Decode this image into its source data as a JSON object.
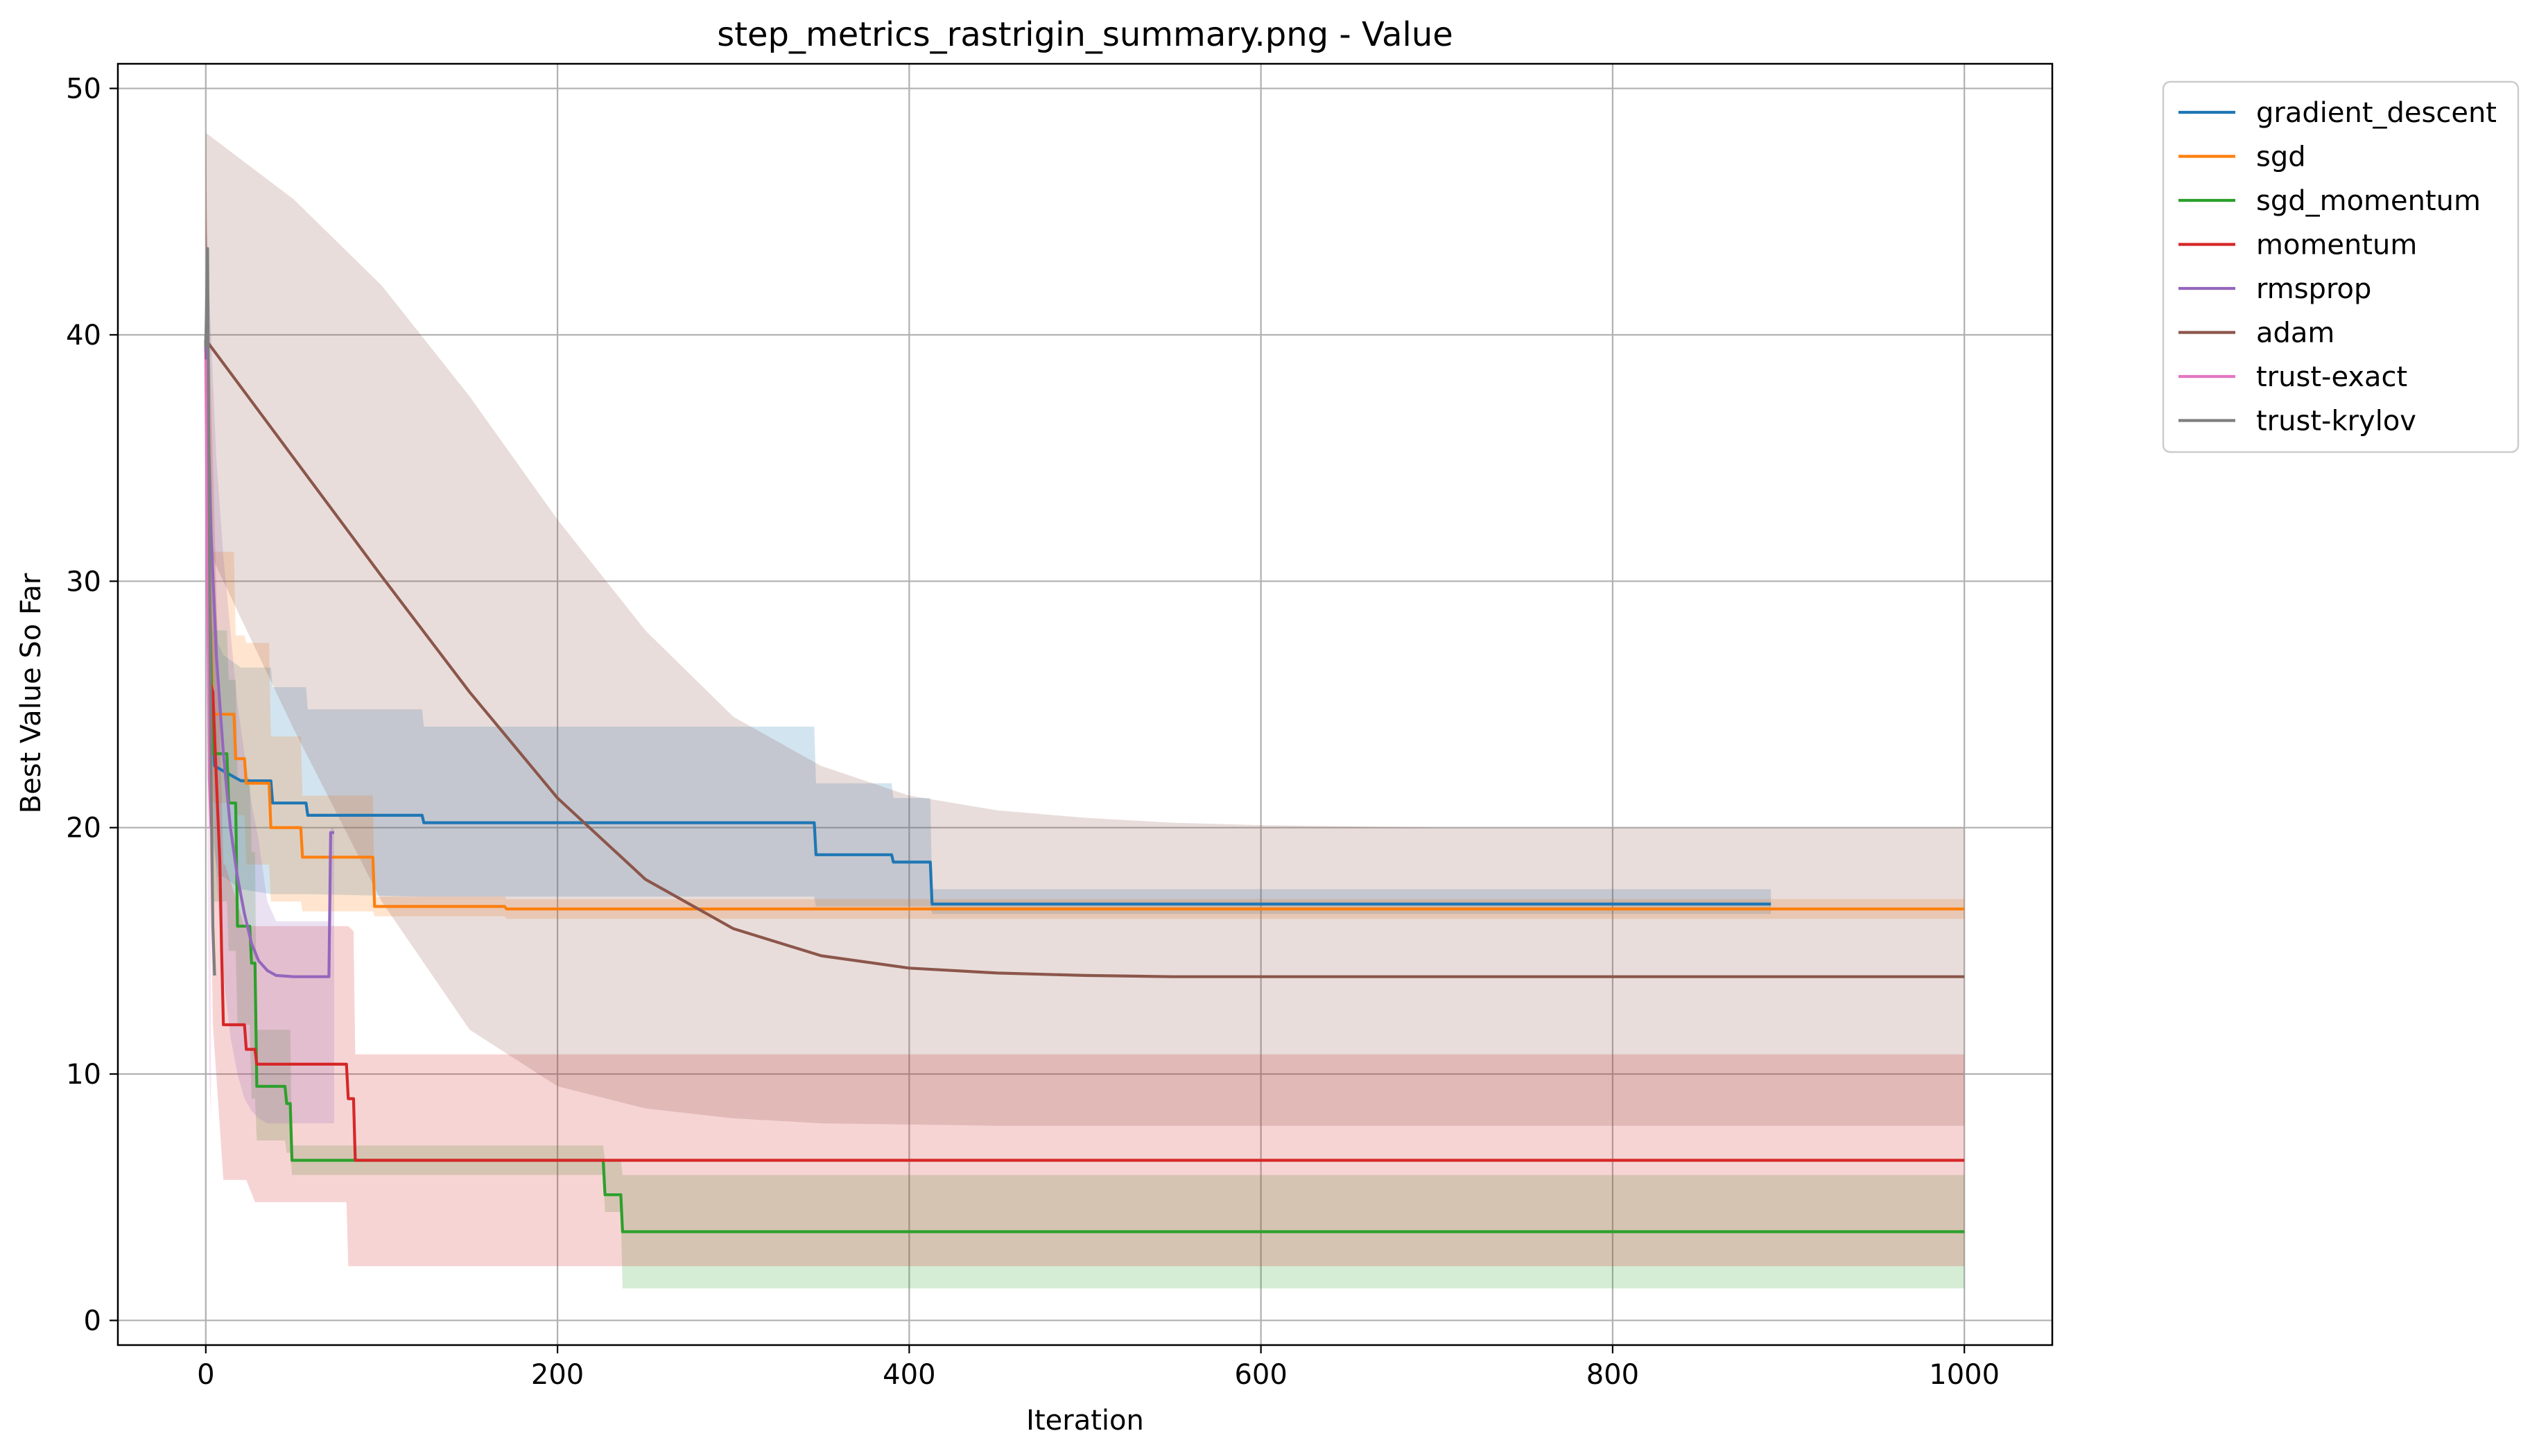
{
  "chart_data": {
    "type": "line",
    "title": "step_metrics_rastrigin_summary.png - Value",
    "xlabel": "Iteration",
    "ylabel": "Best Value So Far",
    "xlim": [
      -50,
      1050
    ],
    "ylim": [
      -1,
      51
    ],
    "xticks": [
      0,
      200,
      400,
      600,
      800,
      1000
    ],
    "yticks": [
      0,
      10,
      20,
      30,
      40,
      50
    ],
    "xtick_labels": [
      "0",
      "200",
      "400",
      "600",
      "800",
      "1000"
    ],
    "ytick_labels": [
      "0",
      "10",
      "20",
      "30",
      "40",
      "50"
    ],
    "grid": true,
    "legend_position": "outside-top-right",
    "series": [
      {
        "name": "gradient_descent",
        "color": "#1f77b4",
        "x": [
          0,
          2,
          5,
          10,
          20,
          37,
          38,
          57,
          58,
          123,
          124,
          346,
          347,
          390,
          391,
          412,
          413,
          890
        ],
        "y": [
          39.8,
          28,
          22.5,
          22.3,
          21.9,
          21.9,
          21,
          21,
          20.5,
          20.5,
          20.2,
          20.2,
          18.9,
          18.9,
          18.6,
          18.6,
          16.9,
          16.9
        ],
        "band_x": [
          0,
          3,
          7,
          10,
          20,
          37,
          38,
          57,
          58,
          123,
          124,
          346,
          347,
          390,
          391,
          412,
          413,
          890
        ],
        "band_lower": [
          30,
          20,
          18,
          18,
          17.5,
          17.3,
          17.3,
          17.3,
          17.3,
          17.2,
          17.2,
          17.2,
          16.8,
          16.8,
          16.8,
          16.8,
          16.5,
          16.5
        ],
        "band_upper": [
          48,
          32,
          27.5,
          27,
          26.5,
          26.5,
          25.7,
          25.7,
          24.8,
          24.8,
          24.1,
          24.1,
          21.8,
          21.8,
          21.2,
          21.2,
          17.5,
          17.5
        ]
      },
      {
        "name": "sgd",
        "color": "#ff7f0e",
        "x": [
          0,
          2,
          4,
          16,
          17,
          22,
          23,
          36,
          37,
          54,
          55,
          95,
          96,
          170,
          171,
          1000
        ],
        "y": [
          39.8,
          30,
          24.6,
          24.6,
          22.8,
          22.8,
          21.8,
          21.8,
          20,
          20,
          18.8,
          18.8,
          16.8,
          16.8,
          16.7,
          16.7
        ],
        "band_x": [
          0,
          4,
          16,
          17,
          22,
          23,
          36,
          37,
          54,
          55,
          95,
          96,
          170,
          171,
          1000
        ],
        "band_lower": [
          30,
          21,
          21,
          20.5,
          20.5,
          18.5,
          18.5,
          17,
          17,
          16.6,
          16.6,
          16.4,
          16.4,
          16.3,
          16.3
        ],
        "band_upper": [
          48,
          31.2,
          31.2,
          27.8,
          27.8,
          27.5,
          27.5,
          23.7,
          23.7,
          21.3,
          21.3,
          17.2,
          17.2,
          17.1,
          17.1
        ]
      },
      {
        "name": "sgd_momentum",
        "color": "#2ca02c",
        "x": [
          0,
          2,
          4,
          12,
          13,
          17,
          18,
          25,
          26,
          28,
          29,
          45,
          46,
          48,
          49,
          226,
          227,
          236,
          237,
          1000
        ],
        "y": [
          39.8,
          30,
          23,
          23,
          21,
          21,
          16,
          16,
          14.5,
          14.5,
          9.5,
          9.5,
          8.8,
          8.8,
          6.5,
          6.5,
          5.1,
          5.1,
          3.6,
          3.6
        ],
        "band_x": [
          0,
          4,
          12,
          13,
          17,
          18,
          25,
          26,
          28,
          29,
          45,
          46,
          48,
          49,
          226,
          227,
          236,
          237,
          1000
        ],
        "band_lower": [
          35,
          17,
          17,
          15,
          15,
          12,
          12,
          9,
          9,
          7.3,
          7.3,
          6.8,
          6.8,
          5.9,
          5.9,
          4.4,
          4.4,
          1.3,
          1.3
        ],
        "band_upper": [
          45,
          28,
          28,
          26,
          26,
          22,
          22,
          19,
          19,
          11.8,
          11.8,
          11.8,
          11.8,
          7.1,
          7.1,
          6.5,
          6.5,
          5.9,
          5.9
        ]
      },
      {
        "name": "momentum",
        "color": "#d62728",
        "x": [
          0,
          2,
          4,
          6,
          8,
          9,
          10,
          22,
          23,
          28,
          29,
          80,
          81,
          84,
          85,
          1000
        ],
        "y": [
          39.8,
          26,
          25.5,
          22,
          18.6,
          15,
          12,
          12,
          11,
          11,
          10.4,
          10.4,
          9,
          9,
          6.5,
          6.5
        ],
        "band_x": [
          0,
          4,
          10,
          11,
          22,
          23,
          28,
          29,
          80,
          81,
          84,
          85,
          1000
        ],
        "band_lower": [
          30,
          12,
          5.7,
          5.7,
          5.7,
          5.7,
          4.8,
          4.8,
          4.8,
          2.2,
          2.2,
          2.2,
          2.2
        ],
        "band_upper": [
          45,
          35,
          18.5,
          18.5,
          16,
          16,
          16,
          16,
          16,
          16,
          15.8,
          10.8,
          10.8
        ]
      },
      {
        "name": "rmsprop",
        "color": "#9467bd",
        "x": [
          0,
          3,
          6,
          10,
          14,
          18,
          22,
          26,
          30,
          35,
          40,
          50,
          60,
          70,
          71,
          73
        ],
        "y": [
          40,
          32,
          27,
          23,
          20,
          18,
          16.5,
          15.3,
          14.6,
          14.2,
          14,
          13.95,
          13.95,
          13.95,
          19.8,
          19.8
        ],
        "band_x": [
          0,
          3,
          6,
          10,
          14,
          18,
          22,
          26,
          30,
          35,
          40,
          50,
          60,
          70,
          71,
          73
        ],
        "band_lower": [
          35,
          24,
          18,
          14,
          11.5,
          10,
          9,
          8.5,
          8.2,
          8,
          8,
          8,
          8,
          8,
          8,
          8
        ],
        "band_upper": [
          45,
          40,
          35,
          31,
          28,
          25,
          23,
          21,
          19.5,
          17,
          16.2,
          16.2,
          16.2,
          16.2,
          20,
          20
        ]
      },
      {
        "name": "adam",
        "color": "#8c564b",
        "x": [
          0,
          50,
          100,
          150,
          200,
          250,
          300,
          350,
          400,
          450,
          500,
          550,
          600,
          700,
          800,
          900,
          1000
        ],
        "y": [
          39.8,
          35,
          30.2,
          25.5,
          21.2,
          17.9,
          15.9,
          14.8,
          14.3,
          14.1,
          14,
          13.95,
          13.95,
          13.95,
          13.95,
          13.95,
          13.95
        ],
        "band_x": [
          0,
          50,
          100,
          150,
          200,
          250,
          300,
          350,
          400,
          450,
          500,
          550,
          600,
          700,
          800,
          900,
          1000
        ],
        "band_lower": [
          31.5,
          24,
          17,
          11.8,
          9.5,
          8.6,
          8.2,
          8,
          7.95,
          7.9,
          7.9,
          7.9,
          7.9,
          7.9,
          7.9,
          7.9,
          7.9
        ],
        "band_upper": [
          48.2,
          45.5,
          42,
          37.5,
          32.5,
          28,
          24.5,
          22.5,
          21.3,
          20.7,
          20.4,
          20.2,
          20.1,
          20,
          20,
          20,
          20
        ]
      },
      {
        "name": "trust-exact",
        "color": "#e377c2",
        "x": [
          0,
          1,
          2,
          3
        ],
        "y": [
          39,
          30,
          22,
          20
        ],
        "band_x": [
          0,
          1,
          2,
          3
        ],
        "band_lower": [
          30,
          18,
          10,
          8
        ],
        "band_upper": [
          44,
          40,
          34,
          30
        ]
      },
      {
        "name": "trust-krylov",
        "color": "#7f7f7f",
        "x": [
          0,
          1,
          2,
          3,
          4,
          5
        ],
        "y": [
          39.5,
          43.5,
          32,
          22,
          16,
          14
        ],
        "band_x": [
          0,
          1,
          2,
          3,
          4,
          5
        ],
        "band_lower": [
          35,
          38,
          25,
          17,
          14,
          14
        ],
        "band_upper": [
          42,
          43.5,
          35,
          26,
          19,
          15
        ]
      }
    ]
  }
}
